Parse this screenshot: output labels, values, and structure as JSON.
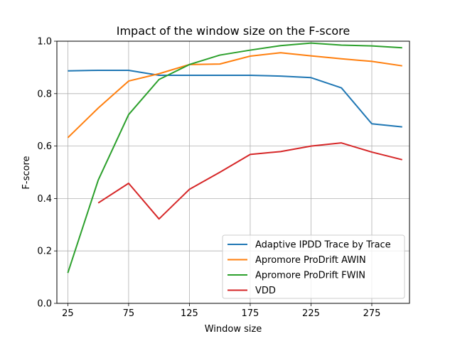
{
  "chart_data": {
    "type": "line",
    "title": "Impact of the window size on the F-score",
    "xlabel": "Window size",
    "ylabel": "F-score",
    "xlim": [
      16,
      306
    ],
    "ylim": [
      0.0,
      1.0
    ],
    "xticks": [
      25,
      75,
      125,
      175,
      225,
      275
    ],
    "yticks": [
      0.0,
      0.2,
      0.4,
      0.6,
      0.8,
      1.0
    ],
    "grid": true,
    "legend_position": "lower-right",
    "series": [
      {
        "name": "Adaptive IPDD Trace by Trace",
        "color": "#1f77b4",
        "points": [
          [
            25,
            0.887
          ],
          [
            50,
            0.889
          ],
          [
            75,
            0.889
          ],
          [
            100,
            0.87
          ],
          [
            125,
            0.87
          ],
          [
            150,
            0.87
          ],
          [
            175,
            0.87
          ],
          [
            200,
            0.867
          ],
          [
            225,
            0.861
          ],
          [
            250,
            0.822
          ],
          [
            275,
            0.685
          ],
          [
            300,
            0.673
          ]
        ]
      },
      {
        "name": "Apromore ProDrift AWIN",
        "color": "#ff7f0e",
        "points": [
          [
            25,
            0.632
          ],
          [
            50,
            0.745
          ],
          [
            75,
            0.848
          ],
          [
            100,
            0.876
          ],
          [
            125,
            0.911
          ],
          [
            150,
            0.913
          ],
          [
            175,
            0.943
          ],
          [
            200,
            0.956
          ],
          [
            225,
            0.944
          ],
          [
            250,
            0.933
          ],
          [
            275,
            0.923
          ],
          [
            300,
            0.906
          ]
        ]
      },
      {
        "name": "Apromore ProDrift FWIN",
        "color": "#2ca02c",
        "points": [
          [
            25,
            0.116
          ],
          [
            50,
            0.47
          ],
          [
            75,
            0.72
          ],
          [
            100,
            0.854
          ],
          [
            125,
            0.911
          ],
          [
            150,
            0.947
          ],
          [
            175,
            0.966
          ],
          [
            200,
            0.983
          ],
          [
            225,
            0.993
          ],
          [
            250,
            0.985
          ],
          [
            275,
            0.982
          ],
          [
            300,
            0.975
          ]
        ]
      },
      {
        "name": "VDD",
        "color": "#d62728",
        "points": [
          [
            50,
            0.383
          ],
          [
            75,
            0.458
          ],
          [
            100,
            0.322
          ],
          [
            125,
            0.435
          ],
          [
            150,
            0.5
          ],
          [
            175,
            0.568
          ],
          [
            200,
            0.579
          ],
          [
            225,
            0.6
          ],
          [
            250,
            0.612
          ],
          [
            275,
            0.577
          ],
          [
            300,
            0.548
          ]
        ]
      }
    ]
  }
}
